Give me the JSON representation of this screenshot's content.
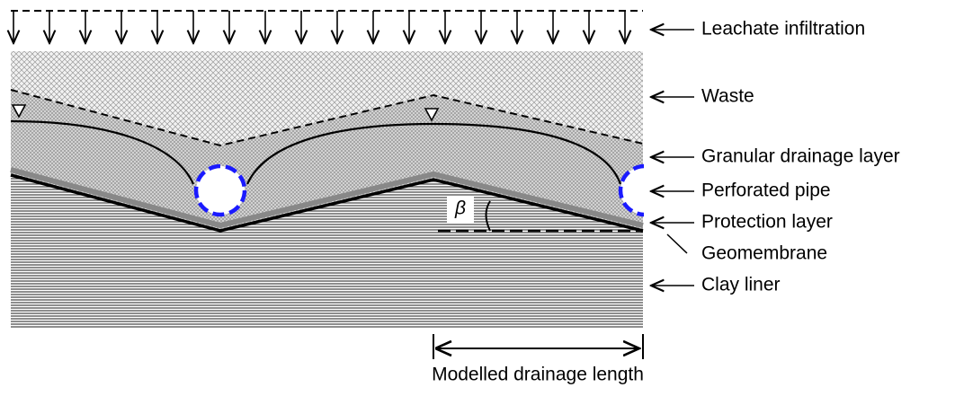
{
  "layer_labels": [
    "Leachate infiltration",
    "Waste",
    "Granular drainage layer",
    "Perforated pipe",
    "Protection layer",
    "Geomembrane",
    "Clay liner"
  ],
  "angle_label": "β",
  "dimension_label": "Modelled drainage length"
}
